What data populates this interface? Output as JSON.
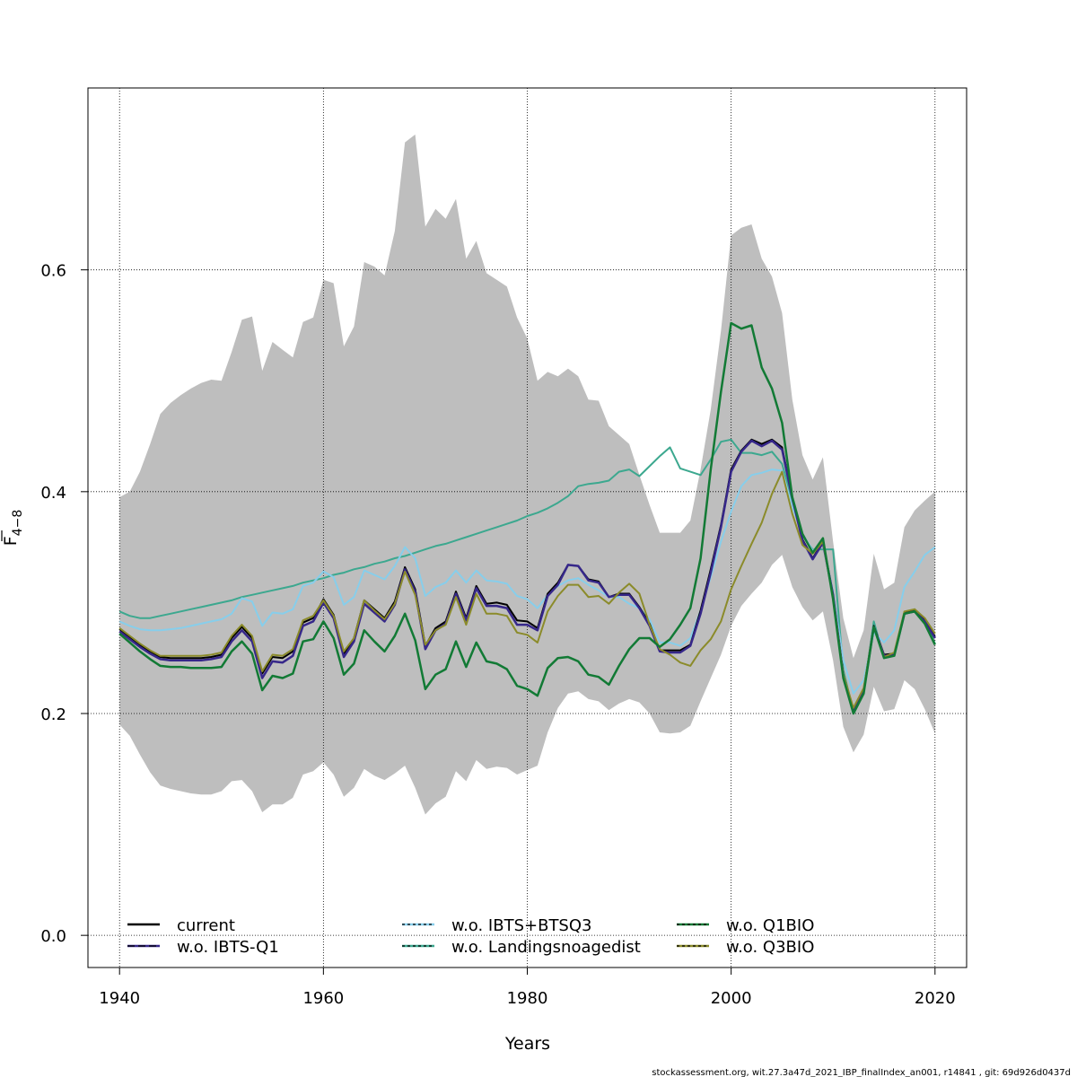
{
  "chart_data": {
    "type": "line",
    "xlabel": "Years",
    "ylabel_main": "F",
    "ylabel_sub": "4−8",
    "xlim": [
      1936.9,
      2023.1
    ],
    "ylim": [
      -0.029,
      0.764
    ],
    "x_ticks": [
      "1940",
      "1960",
      "1980",
      "2000",
      "2020"
    ],
    "y_ticks": [
      "0.0",
      "0.2",
      "0.4",
      "0.6"
    ],
    "grid": true,
    "legend_position": "bottom",
    "footer": "stockassessment.org, wit.27.3a47d_2021_IBP_finalIndex_an001, r14841 , git: 69d926d0437d",
    "band": {
      "color": "#bebebe",
      "x": [
        1940,
        1941,
        1942,
        1943,
        1944,
        1945,
        1946,
        1947,
        1948,
        1949,
        1950,
        1951,
        1952,
        1953,
        1954,
        1955,
        1956,
        1957,
        1958,
        1959,
        1960,
        1961,
        1962,
        1963,
        1964,
        1965,
        1966,
        1967,
        1968,
        1969,
        1970,
        1971,
        1972,
        1973,
        1974,
        1975,
        1976,
        1977,
        1978,
        1979,
        1980,
        1981,
        1982,
        1983,
        1984,
        1985,
        1986,
        1987,
        1988,
        1989,
        1990,
        1991,
        1992,
        1993,
        1994,
        1995,
        1996,
        1997,
        1998,
        1999,
        2000,
        2001,
        2002,
        2003,
        2004,
        2005,
        2006,
        2007,
        2008,
        2009,
        2010,
        2011,
        2012,
        2013,
        2014,
        2015,
        2016,
        2017,
        2018,
        2019,
        2020
      ],
      "upper": [
        0.395,
        0.4,
        0.418,
        0.443,
        0.47,
        0.48,
        0.487,
        0.493,
        0.498,
        0.501,
        0.5,
        0.526,
        0.555,
        0.558,
        0.509,
        0.535,
        0.528,
        0.521,
        0.553,
        0.557,
        0.591,
        0.588,
        0.531,
        0.549,
        0.607,
        0.603,
        0.595,
        0.635,
        0.715,
        0.722,
        0.639,
        0.655,
        0.646,
        0.664,
        0.61,
        0.626,
        0.597,
        0.591,
        0.585,
        0.557,
        0.538,
        0.5,
        0.508,
        0.504,
        0.511,
        0.504,
        0.483,
        0.482,
        0.459,
        0.451,
        0.443,
        0.415,
        0.388,
        0.363,
        0.363,
        0.363,
        0.374,
        0.42,
        0.474,
        0.545,
        0.631,
        0.638,
        0.641,
        0.61,
        0.594,
        0.561,
        0.483,
        0.433,
        0.411,
        0.431,
        0.355,
        0.286,
        0.25,
        0.275,
        0.344,
        0.312,
        0.318,
        0.368,
        0.383,
        0.392,
        0.4
      ],
      "lower": [
        0.19,
        0.18,
        0.163,
        0.147,
        0.135,
        0.132,
        0.13,
        0.128,
        0.127,
        0.127,
        0.13,
        0.139,
        0.14,
        0.13,
        0.111,
        0.118,
        0.118,
        0.124,
        0.145,
        0.148,
        0.156,
        0.145,
        0.125,
        0.133,
        0.15,
        0.144,
        0.14,
        0.146,
        0.153,
        0.133,
        0.109,
        0.119,
        0.125,
        0.148,
        0.139,
        0.158,
        0.15,
        0.152,
        0.151,
        0.145,
        0.149,
        0.153,
        0.183,
        0.205,
        0.218,
        0.22,
        0.213,
        0.211,
        0.203,
        0.209,
        0.213,
        0.21,
        0.2,
        0.183,
        0.182,
        0.183,
        0.189,
        0.211,
        0.232,
        0.253,
        0.279,
        0.297,
        0.308,
        0.318,
        0.334,
        0.343,
        0.314,
        0.296,
        0.284,
        0.292,
        0.248,
        0.188,
        0.165,
        0.181,
        0.224,
        0.202,
        0.204,
        0.23,
        0.222,
        0.204,
        0.182
      ]
    },
    "x": [
      1940,
      1941,
      1942,
      1943,
      1944,
      1945,
      1946,
      1947,
      1948,
      1949,
      1950,
      1951,
      1952,
      1953,
      1954,
      1955,
      1956,
      1957,
      1958,
      1959,
      1960,
      1961,
      1962,
      1963,
      1964,
      1965,
      1966,
      1967,
      1968,
      1969,
      1970,
      1971,
      1972,
      1973,
      1974,
      1975,
      1976,
      1977,
      1978,
      1979,
      1980,
      1981,
      1982,
      1983,
      1984,
      1985,
      1986,
      1987,
      1988,
      1989,
      1990,
      1991,
      1992,
      1993,
      1994,
      1995,
      1996,
      1997,
      1998,
      1999,
      2000,
      2001,
      2002,
      2003,
      2004,
      2005,
      2006,
      2007,
      2008,
      2009,
      2010,
      2011,
      2012,
      2013,
      2014,
      2015,
      2016,
      2017,
      2018,
      2019,
      2020
    ],
    "series": [
      {
        "name": "w.o. Landingsnoagedist",
        "color": "#3ca88f",
        "dash": "",
        "width": 2,
        "values": [
          0.292,
          0.288,
          0.286,
          0.286,
          0.288,
          0.29,
          0.292,
          0.294,
          0.296,
          0.298,
          0.3,
          0.302,
          0.305,
          0.307,
          0.309,
          0.311,
          0.313,
          0.315,
          0.318,
          0.32,
          0.322,
          0.325,
          0.327,
          0.33,
          0.332,
          0.335,
          0.337,
          0.34,
          0.342,
          0.345,
          0.348,
          0.351,
          0.353,
          0.356,
          0.359,
          0.362,
          0.365,
          0.368,
          0.371,
          0.374,
          0.378,
          0.381,
          0.385,
          0.39,
          0.396,
          0.405,
          0.407,
          0.408,
          0.41,
          0.418,
          0.42,
          0.414,
          0.423,
          0.432,
          0.44,
          0.421,
          0.418,
          0.415,
          0.429,
          0.445,
          0.447,
          0.435,
          0.435,
          0.433,
          0.436,
          0.425,
          0.392,
          0.36,
          0.348,
          0.348,
          0.348,
          0.239,
          0.202,
          0.219,
          0.283,
          0.25,
          0.254,
          0.291,
          0.294,
          0.283,
          0.263
        ]
      },
      {
        "name": "w.o. IBTS+BTSQ3",
        "color": "#87ceeb",
        "dash": "",
        "width": 2,
        "values": [
          0.283,
          0.279,
          0.276,
          0.275,
          0.275,
          0.276,
          0.277,
          0.279,
          0.281,
          0.283,
          0.285,
          0.29,
          0.304,
          0.301,
          0.279,
          0.291,
          0.29,
          0.294,
          0.315,
          0.318,
          0.328,
          0.323,
          0.298,
          0.305,
          0.329,
          0.325,
          0.321,
          0.333,
          0.35,
          0.34,
          0.306,
          0.314,
          0.318,
          0.329,
          0.318,
          0.329,
          0.32,
          0.319,
          0.317,
          0.306,
          0.303,
          0.295,
          0.307,
          0.315,
          0.32,
          0.322,
          0.316,
          0.311,
          0.305,
          0.305,
          0.299,
          0.295,
          0.285,
          0.264,
          0.264,
          0.261,
          0.268,
          0.293,
          0.323,
          0.355,
          0.382,
          0.405,
          0.415,
          0.417,
          0.42,
          0.419,
          0.386,
          0.362,
          0.347,
          0.352,
          0.31,
          0.248,
          0.218,
          0.23,
          0.273,
          0.264,
          0.275,
          0.314,
          0.328,
          0.343,
          0.35
        ]
      },
      {
        "name": "current",
        "color": "#000000",
        "dash": "",
        "width": 2,
        "values": [
          0.276,
          0.269,
          0.262,
          0.256,
          0.251,
          0.25,
          0.25,
          0.25,
          0.25,
          0.251,
          0.253,
          0.268,
          0.278,
          0.268,
          0.236,
          0.251,
          0.25,
          0.256,
          0.282,
          0.286,
          0.303,
          0.289,
          0.254,
          0.268,
          0.302,
          0.294,
          0.286,
          0.301,
          0.332,
          0.312,
          0.261,
          0.277,
          0.283,
          0.31,
          0.286,
          0.315,
          0.299,
          0.3,
          0.298,
          0.284,
          0.283,
          0.277,
          0.308,
          0.318,
          0.334,
          0.333,
          0.321,
          0.319,
          0.305,
          0.308,
          0.308,
          0.296,
          0.281,
          0.257,
          0.257,
          0.257,
          0.262,
          0.293,
          0.33,
          0.37,
          0.42,
          0.437,
          0.447,
          0.443,
          0.447,
          0.44,
          0.395,
          0.357,
          0.34,
          0.355,
          0.307,
          0.235,
          0.203,
          0.221,
          0.279,
          0.253,
          0.254,
          0.291,
          0.293,
          0.284,
          0.269
        ]
      },
      {
        "name": "w.o. IBTS-Q1",
        "color": "#36278a",
        "dash": "",
        "width": 2.5,
        "values": [
          0.274,
          0.267,
          0.26,
          0.254,
          0.249,
          0.248,
          0.248,
          0.248,
          0.248,
          0.249,
          0.251,
          0.265,
          0.275,
          0.265,
          0.232,
          0.247,
          0.246,
          0.252,
          0.279,
          0.283,
          0.3,
          0.286,
          0.251,
          0.265,
          0.299,
          0.291,
          0.283,
          0.298,
          0.33,
          0.31,
          0.258,
          0.275,
          0.281,
          0.308,
          0.284,
          0.313,
          0.297,
          0.297,
          0.295,
          0.28,
          0.28,
          0.275,
          0.306,
          0.316,
          0.334,
          0.333,
          0.32,
          0.318,
          0.305,
          0.307,
          0.307,
          0.295,
          0.279,
          0.256,
          0.255,
          0.255,
          0.261,
          0.29,
          0.327,
          0.368,
          0.418,
          0.436,
          0.446,
          0.441,
          0.446,
          0.438,
          0.394,
          0.356,
          0.339,
          0.354,
          0.307,
          0.234,
          0.202,
          0.22,
          0.278,
          0.252,
          0.253,
          0.29,
          0.292,
          0.283,
          0.268
        ]
      },
      {
        "name": "w.o. Q3BIO",
        "color": "#8b8b2a",
        "dash": "",
        "width": 2,
        "values": [
          0.277,
          0.27,
          0.263,
          0.257,
          0.252,
          0.252,
          0.252,
          0.252,
          0.252,
          0.253,
          0.255,
          0.27,
          0.28,
          0.27,
          0.238,
          0.253,
          0.252,
          0.258,
          0.284,
          0.288,
          0.302,
          0.288,
          0.256,
          0.268,
          0.302,
          0.293,
          0.285,
          0.299,
          0.328,
          0.307,
          0.262,
          0.275,
          0.28,
          0.305,
          0.28,
          0.308,
          0.29,
          0.29,
          0.288,
          0.273,
          0.271,
          0.264,
          0.292,
          0.306,
          0.316,
          0.316,
          0.305,
          0.306,
          0.299,
          0.309,
          0.317,
          0.308,
          0.28,
          0.258,
          0.253,
          0.246,
          0.243,
          0.257,
          0.267,
          0.283,
          0.312,
          0.333,
          0.353,
          0.372,
          0.398,
          0.418,
          0.38,
          0.352,
          0.344,
          0.355,
          0.305,
          0.235,
          0.205,
          0.223,
          0.278,
          0.251,
          0.255,
          0.292,
          0.294,
          0.286,
          0.272
        ]
      },
      {
        "name": "w.o. Q1BIO",
        "color": "#127a35",
        "dash": "",
        "width": 2.5,
        "values": [
          0.272,
          0.264,
          0.256,
          0.249,
          0.243,
          0.242,
          0.242,
          0.241,
          0.241,
          0.241,
          0.242,
          0.256,
          0.265,
          0.254,
          0.221,
          0.234,
          0.232,
          0.236,
          0.265,
          0.267,
          0.283,
          0.268,
          0.235,
          0.245,
          0.275,
          0.265,
          0.256,
          0.27,
          0.29,
          0.266,
          0.222,
          0.235,
          0.24,
          0.265,
          0.242,
          0.264,
          0.247,
          0.245,
          0.24,
          0.225,
          0.222,
          0.216,
          0.241,
          0.25,
          0.251,
          0.247,
          0.235,
          0.233,
          0.226,
          0.243,
          0.258,
          0.268,
          0.268,
          0.26,
          0.267,
          0.28,
          0.295,
          0.34,
          0.42,
          0.49,
          0.552,
          0.547,
          0.55,
          0.512,
          0.493,
          0.462,
          0.395,
          0.362,
          0.345,
          0.358,
          0.303,
          0.232,
          0.2,
          0.218,
          0.278,
          0.25,
          0.252,
          0.29,
          0.292,
          0.281,
          0.262
        ]
      }
    ],
    "legend": [
      {
        "label": "current",
        "color": "#000000",
        "dash": "",
        "overlay": ""
      },
      {
        "label": "w.o. IBTS-Q1",
        "color": "#36278a",
        "dash": "",
        "overlay": "8 4"
      },
      {
        "label": "w.o. IBTS+BTSQ3",
        "color": "#87ceeb",
        "dash": "",
        "overlay": "3 3"
      },
      {
        "label": "w.o. Landingsnoagedist",
        "color": "#3ca88f",
        "dash": "",
        "overlay": "3 3"
      },
      {
        "label": "w.o. Q1BIO",
        "color": "#127a35",
        "dash": "",
        "overlay": "3 3"
      },
      {
        "label": "w.o. Q3BIO",
        "color": "#8b8b2a",
        "dash": "",
        "overlay": "3 3"
      }
    ]
  }
}
